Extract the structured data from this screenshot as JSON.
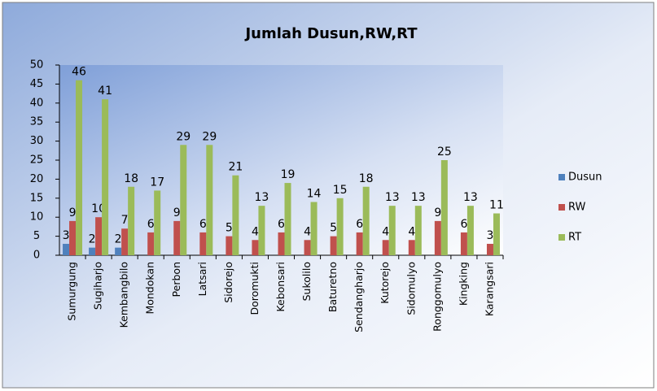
{
  "chart_data": {
    "type": "bar",
    "title": "Jumlah Dusun,RW,RT",
    "categories": [
      "Sumurgung",
      "Sugiharjo",
      "Kembangbilo",
      "Mondokan",
      "Perbon",
      "Latsari",
      "Sidorejo",
      "Doromukti",
      "Kebonsari",
      "Sukolilo",
      "Baturetno",
      "Sendangharjo",
      "Kutorejo",
      "Sidomulyo",
      "Ronggomulyo",
      "Kingking",
      "Karangsari"
    ],
    "series": [
      {
        "name": "Dusun",
        "color": "#4f81bd",
        "values": [
          3,
          2,
          2,
          null,
          null,
          null,
          null,
          null,
          null,
          null,
          null,
          null,
          null,
          null,
          null,
          null,
          null
        ]
      },
      {
        "name": "RW",
        "color": "#c0504d",
        "values": [
          9,
          10,
          7,
          6,
          9,
          6,
          5,
          4,
          6,
          4,
          5,
          6,
          4,
          4,
          9,
          6,
          3
        ]
      },
      {
        "name": "RT",
        "color": "#9bbb59",
        "values": [
          46,
          41,
          18,
          17,
          29,
          29,
          21,
          13,
          19,
          14,
          15,
          18,
          13,
          13,
          25,
          13,
          11
        ]
      }
    ],
    "ylim": [
      0,
      50
    ],
    "yticks": [
      0,
      5,
      10,
      15,
      20,
      25,
      30,
      35,
      40,
      45,
      50
    ],
    "legend": "right"
  }
}
